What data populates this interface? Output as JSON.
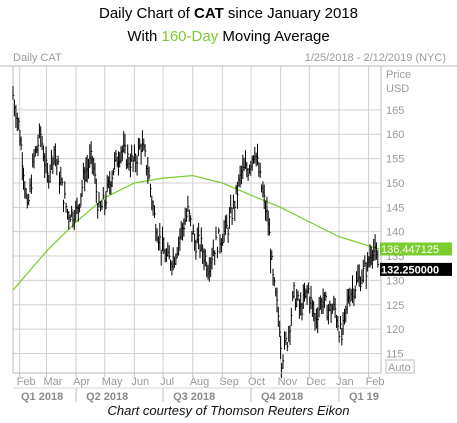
{
  "title": {
    "line1_prefix": "Daily Chart of ",
    "line1_ticker": "CAT",
    "line1_suffix": " since January 2018",
    "line2_prefix": "With ",
    "line2_highlight": "160-Day",
    "line2_suffix": " Moving Average"
  },
  "footer": "Chart courtesy of Thomson Reuters Eikon",
  "colors": {
    "moving_average": "#7acc2f",
    "price_bars": "#000000",
    "grid": "#d0d0d0",
    "price_tag_bg": "#000000",
    "ma_tag_bg": "#7acc2f"
  },
  "chart_data": {
    "type": "ohlc",
    "symbol_label": "Daily CAT",
    "date_range_label": "1/25/2018 - 2/12/2019 (NYC)",
    "y_axis_title": "Price",
    "y_axis_unit": "USD",
    "y_ticks": [
      115,
      120,
      125,
      130,
      135,
      140,
      145,
      150,
      155,
      160,
      165
    ],
    "ylim": [
      111,
      174
    ],
    "x_month_labels": [
      "Feb",
      "Mar",
      "Apr",
      "May",
      "Jun",
      "Jul",
      "Aug",
      "Sep",
      "Oct",
      "Nov",
      "Dec",
      "Jan",
      "Feb"
    ],
    "x_quarter_labels": [
      "Q1 2018",
      "Q2 2018",
      "Q3 2018",
      "Q4 2018",
      "Q1 19"
    ],
    "autoscale_label": "Auto",
    "last_price_label": "132.250000",
    "last_price": 132.25,
    "ma_last_label": "136.447125",
    "ma_last": 136.447125,
    "price_series_anchors": [
      {
        "date": "2018-01-25",
        "close": 168
      },
      {
        "date": "2018-01-31",
        "close": 162
      },
      {
        "date": "2018-02-05",
        "close": 153
      },
      {
        "date": "2018-02-09",
        "close": 144
      },
      {
        "date": "2018-02-16",
        "close": 155
      },
      {
        "date": "2018-02-23",
        "close": 160
      },
      {
        "date": "2018-03-02",
        "close": 151
      },
      {
        "date": "2018-03-09",
        "close": 157
      },
      {
        "date": "2018-03-16",
        "close": 150
      },
      {
        "date": "2018-03-23",
        "close": 144
      },
      {
        "date": "2018-04-02",
        "close": 144
      },
      {
        "date": "2018-04-10",
        "close": 152
      },
      {
        "date": "2018-04-18",
        "close": 155
      },
      {
        "date": "2018-04-25",
        "close": 144
      },
      {
        "date": "2018-05-01",
        "close": 146
      },
      {
        "date": "2018-05-10",
        "close": 153
      },
      {
        "date": "2018-05-18",
        "close": 157
      },
      {
        "date": "2018-05-25",
        "close": 155
      },
      {
        "date": "2018-06-01",
        "close": 154
      },
      {
        "date": "2018-06-08",
        "close": 158
      },
      {
        "date": "2018-06-15",
        "close": 153
      },
      {
        "date": "2018-06-22",
        "close": 143
      },
      {
        "date": "2018-06-29",
        "close": 137
      },
      {
        "date": "2018-07-06",
        "close": 134
      },
      {
        "date": "2018-07-13",
        "close": 135
      },
      {
        "date": "2018-07-20",
        "close": 140
      },
      {
        "date": "2018-07-27",
        "close": 144
      },
      {
        "date": "2018-08-03",
        "close": 138
      },
      {
        "date": "2018-08-10",
        "close": 137
      },
      {
        "date": "2018-08-17",
        "close": 133
      },
      {
        "date": "2018-08-24",
        "close": 137
      },
      {
        "date": "2018-08-31",
        "close": 139
      },
      {
        "date": "2018-09-07",
        "close": 141
      },
      {
        "date": "2018-09-14",
        "close": 146
      },
      {
        "date": "2018-09-21",
        "close": 152
      },
      {
        "date": "2018-09-28",
        "close": 153
      },
      {
        "date": "2018-10-05",
        "close": 157
      },
      {
        "date": "2018-10-12",
        "close": 149
      },
      {
        "date": "2018-10-19",
        "close": 142
      },
      {
        "date": "2018-10-24",
        "close": 130
      },
      {
        "date": "2018-10-31",
        "close": 121
      },
      {
        "date": "2018-11-02",
        "close": 114
      },
      {
        "date": "2018-11-08",
        "close": 118
      },
      {
        "date": "2018-11-15",
        "close": 127
      },
      {
        "date": "2018-11-22",
        "close": 124
      },
      {
        "date": "2018-11-30",
        "close": 128
      },
      {
        "date": "2018-12-07",
        "close": 122
      },
      {
        "date": "2018-12-14",
        "close": 126
      },
      {
        "date": "2018-12-21",
        "close": 124
      },
      {
        "date": "2018-12-28",
        "close": 124
      },
      {
        "date": "2019-01-04",
        "close": 118
      },
      {
        "date": "2019-01-11",
        "close": 127
      },
      {
        "date": "2019-01-18",
        "close": 129
      },
      {
        "date": "2019-01-25",
        "close": 131
      },
      {
        "date": "2019-01-31",
        "close": 133
      },
      {
        "date": "2019-02-05",
        "close": 137
      },
      {
        "date": "2019-02-12",
        "close": 132.25
      }
    ],
    "moving_average_anchors": [
      {
        "date": "2018-01-25",
        "value": 128
      },
      {
        "date": "2018-03-01",
        "value": 136
      },
      {
        "date": "2018-04-01",
        "value": 142
      },
      {
        "date": "2018-05-01",
        "value": 147
      },
      {
        "date": "2018-06-01",
        "value": 150
      },
      {
        "date": "2018-07-01",
        "value": 151
      },
      {
        "date": "2018-08-01",
        "value": 151.5
      },
      {
        "date": "2018-09-01",
        "value": 150
      },
      {
        "date": "2018-10-01",
        "value": 147.5
      },
      {
        "date": "2018-11-01",
        "value": 145
      },
      {
        "date": "2018-12-01",
        "value": 142
      },
      {
        "date": "2019-01-01",
        "value": 139
      },
      {
        "date": "2019-02-12",
        "value": 136.447125
      }
    ]
  }
}
